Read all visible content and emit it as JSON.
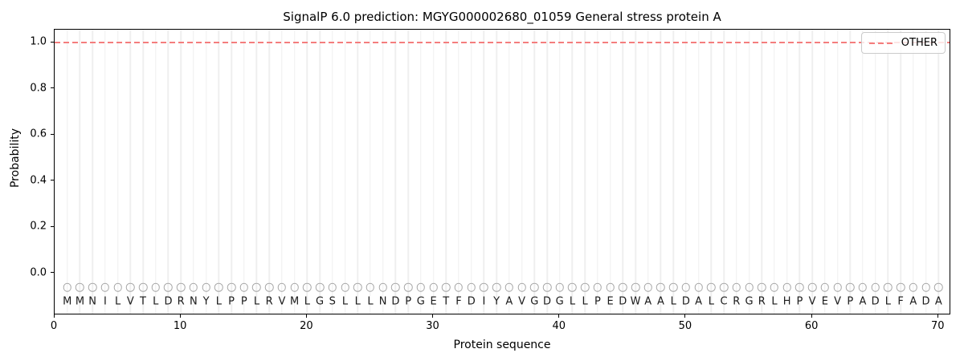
{
  "chart_data": {
    "type": "line",
    "title": "SignalP 6.0 prediction: MGYG000002680_01059 General stress protein A",
    "xlabel": "Protein sequence",
    "ylabel": "Probability",
    "xlim": [
      0,
      71
    ],
    "ylim": [
      -0.1806,
      1.0556
    ],
    "xticks": [
      0,
      10,
      20,
      30,
      40,
      50,
      60,
      70
    ],
    "ytick_labels": [
      "0.0",
      "0.2",
      "0.4",
      "0.6",
      "0.8",
      "1.0"
    ],
    "grid": "light vertical gridline at every residue position 1-70",
    "legend": {
      "position": "upper right",
      "entries": [
        "OTHER"
      ]
    },
    "series": [
      {
        "name": "OTHER",
        "style": "dashed",
        "color": "#f47d7d",
        "y_constant": 1.0,
        "x_range": [
          0,
          71
        ],
        "note": "constant probability 1.0 across all 70 residues"
      }
    ],
    "sequence": {
      "residues": "MMNILVTLDRNYLPPLRVMLGSLLLNDPGETFDIYAVGDGLLPEDWAALDALCRGRLHPVEVPADLFADA",
      "length": 70,
      "first_position": 1,
      "marker": "open-circle",
      "marker_y": -0.06,
      "marker_color": "#a6a6a6",
      "letter_color": "#1a1a1a"
    },
    "colors": {
      "background": "#ffffff",
      "spine": "#000000",
      "gridline": "#efefef",
      "other_line": "#f47d7d",
      "legend_border": "#cbcbcb"
    }
  }
}
